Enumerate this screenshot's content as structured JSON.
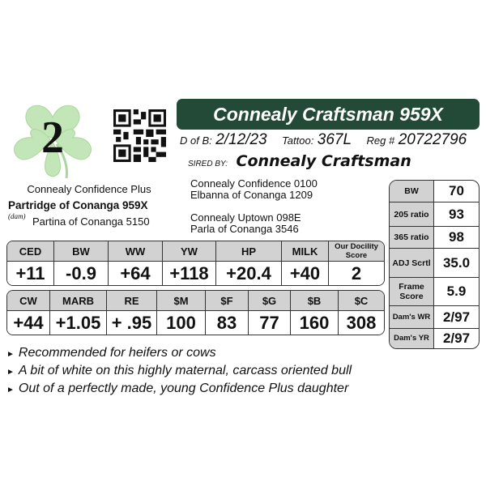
{
  "lot_number": "2",
  "title": "Connealy Craftsman 959X",
  "info": {
    "dob_label": "D of B:",
    "dob": "2/12/23",
    "tattoo_label": "Tattoo:",
    "tattoo": "367L",
    "reg_label": "Reg #",
    "reg": "20722796"
  },
  "sired_by": {
    "label": "SIRED BY:",
    "name": "Connealy Craftsman"
  },
  "pedigree": {
    "dam_sire": "Connealy Confidence Plus",
    "dam": "Partridge of Conanga 959X",
    "dam_tag": "(dam)",
    "dam_dam": "Partina of Conanga 5150",
    "sire_sire": "Connealy Confidence 0100",
    "sire_dam": "Elbanna of Conanga 1209",
    "mid_sire": "Connealy Uptown 098E",
    "mid_dam": "Parla of Conanga 3546"
  },
  "epd1": {
    "headers": [
      "CED",
      "BW",
      "WW",
      "YW",
      "HP",
      "MILK",
      "Our Docility Score"
    ],
    "values": [
      "+11",
      "-0.9",
      "+64",
      "+118",
      "+20.4",
      "+40",
      "2"
    ]
  },
  "epd2": {
    "headers": [
      "CW",
      "MARB",
      "RE",
      "$M",
      "$F",
      "$G",
      "$B",
      "$C"
    ],
    "values": [
      "+44",
      "+1.05",
      "+ .95",
      "100",
      "83",
      "77",
      "160",
      "308"
    ]
  },
  "side": [
    {
      "label": "BW",
      "value": "70"
    },
    {
      "label": "205 ratio",
      "value": "93"
    },
    {
      "label": "365 ratio",
      "value": "98"
    },
    {
      "label": "ADJ Scrtl",
      "value": "35.0"
    },
    {
      "label": "Frame Score",
      "value": "5.9"
    },
    {
      "label": "Dam's WR",
      "value": "2/97"
    },
    {
      "label": "Dam's YR",
      "value": "2/97"
    }
  ],
  "notes": [
    "Recommended for heifers or cows",
    "A bit of white on this highly maternal, carcass oriented bull",
    "Out of a perfectly made, young Confidence Plus daughter"
  ],
  "colors": {
    "title_bar": "#234a36",
    "shamrock": "#bfe3b4",
    "header_cell": "#d2d2d2"
  }
}
